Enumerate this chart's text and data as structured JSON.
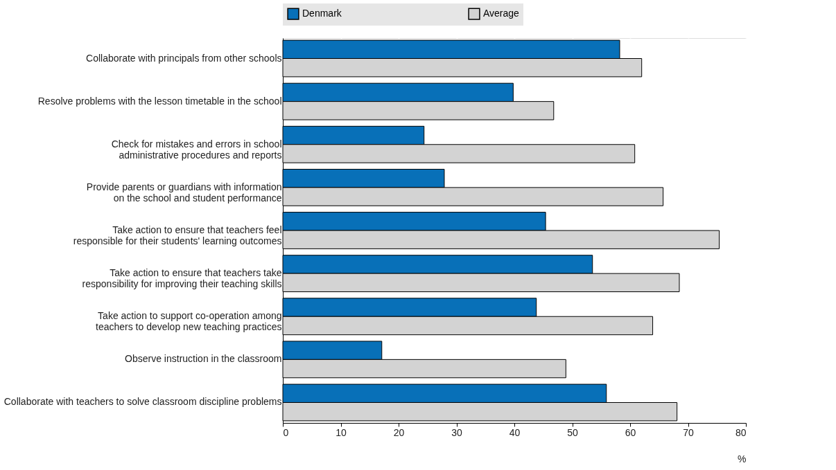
{
  "chart_data": {
    "type": "bar",
    "orientation": "horizontal",
    "xlabel": "%",
    "categories": [
      "Collaborate with principals from other schools",
      "Resolve problems with the lesson timetable in the school",
      "Check for mistakes and errors in school\nadministrative procedures and reports",
      "Provide parents or guardians with information\non the school and student performance",
      "Take action to ensure that teachers feel\nresponsible for their students' learning outcomes",
      "Take action to ensure that teachers take\nresponsibility for improving their teaching skills",
      "Take action to support co-operation among\nteachers to develop new teaching practices",
      "Observe instruction in the classroom",
      "Collaborate with teachers to solve classroom discipline problems"
    ],
    "series": [
      {
        "name": "Denmark",
        "color": "#0870b8",
        "values": [
          58.2,
          39.8,
          24.4,
          27.9,
          45.4,
          53.5,
          43.8,
          17.1,
          55.9
        ]
      },
      {
        "name": "Average",
        "color": "#d3d3d3",
        "values": [
          62.0,
          46.8,
          60.8,
          65.7,
          75.4,
          68.5,
          63.9,
          48.9,
          68.1
        ]
      }
    ],
    "xlim": [
      0,
      80
    ],
    "xticks": [
      0,
      10,
      20,
      30,
      40,
      50,
      60,
      70,
      80
    ],
    "grid": "x",
    "legend": "top"
  }
}
